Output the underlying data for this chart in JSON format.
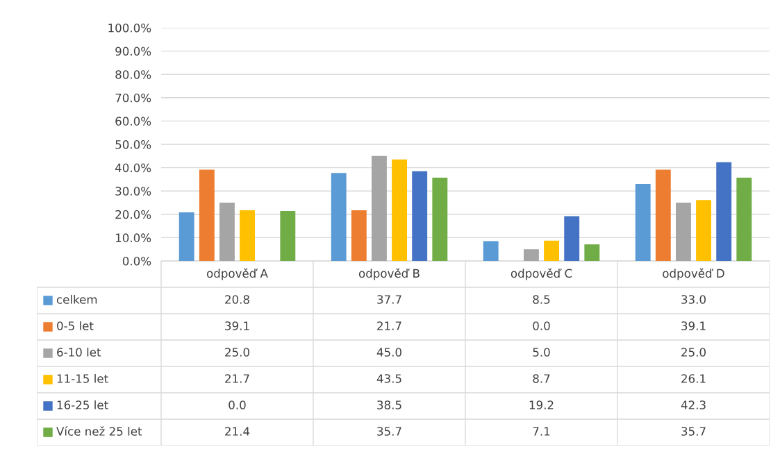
{
  "chart_data": {
    "type": "bar",
    "categories": [
      "odpověď A",
      "odpověď B",
      "odpověď C",
      "odpověď D"
    ],
    "series": [
      {
        "name": "celkem",
        "color": "#5b9bd5",
        "values": [
          20.8,
          37.7,
          8.5,
          33.0
        ],
        "value_labels": [
          "20.8",
          "37.7",
          "8.5",
          "33.0"
        ]
      },
      {
        "name": "0-5 let",
        "color": "#ed7d31",
        "values": [
          39.1,
          21.7,
          0.0,
          39.1
        ],
        "value_labels": [
          "39.1",
          "21.7",
          "0.0",
          "39.1"
        ]
      },
      {
        "name": "6-10 let",
        "color": "#a5a5a5",
        "values": [
          25.0,
          45.0,
          5.0,
          25.0
        ],
        "value_labels": [
          "25.0",
          "45.0",
          "5.0",
          "25.0"
        ]
      },
      {
        "name": "11-15 let",
        "color": "#ffc000",
        "values": [
          21.7,
          43.5,
          8.7,
          26.1
        ],
        "value_labels": [
          "21.7",
          "43.5",
          "8.7",
          "26.1"
        ]
      },
      {
        "name": "16-25 let",
        "color": "#4472c4",
        "values": [
          0.0,
          38.5,
          19.2,
          42.3
        ],
        "value_labels": [
          "0.0",
          "38.5",
          "19.2",
          "42.3"
        ]
      },
      {
        "name": "Více než 25 let",
        "color": "#70ad47",
        "values": [
          21.4,
          35.7,
          7.1,
          35.7
        ],
        "value_labels": [
          "21.4",
          "35.7",
          "7.1",
          "35.7"
        ]
      }
    ],
    "ylim": [
      0,
      100
    ],
    "yticks": [
      {
        "value": 0,
        "label": "0.0%"
      },
      {
        "value": 10,
        "label": "10.0%"
      },
      {
        "value": 20,
        "label": "20.0%"
      },
      {
        "value": 30,
        "label": "30.0%"
      },
      {
        "value": 40,
        "label": "40.0%"
      },
      {
        "value": 50,
        "label": "50.0%"
      },
      {
        "value": 60,
        "label": "60.0%"
      },
      {
        "value": 70,
        "label": "70.0%"
      },
      {
        "value": 80,
        "label": "80.0%"
      },
      {
        "value": 90,
        "label": "90.0%"
      },
      {
        "value": 100,
        "label": "100.0%"
      }
    ],
    "grid": "y",
    "legend": "bottom"
  }
}
